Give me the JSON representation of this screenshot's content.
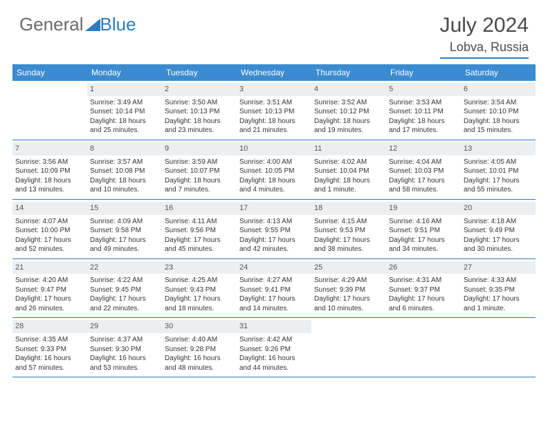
{
  "logo": {
    "text_gray": "General",
    "text_blue": "Blue"
  },
  "title": "July 2024",
  "location": "Lobva, Russia",
  "colors": {
    "header_bg": "#3a8bd0",
    "accent": "#2b7bc0",
    "daynum_bg": "#eceff1",
    "text": "#333333",
    "gray_text": "#6a6a6a",
    "background": "#ffffff"
  },
  "day_names": [
    "Sunday",
    "Monday",
    "Tuesday",
    "Wednesday",
    "Thursday",
    "Friday",
    "Saturday"
  ],
  "weeks": [
    [
      null,
      {
        "n": "1",
        "sunrise": "3:49 AM",
        "sunset": "10:14 PM",
        "daylight": "18 hours and 25 minutes."
      },
      {
        "n": "2",
        "sunrise": "3:50 AM",
        "sunset": "10:13 PM",
        "daylight": "18 hours and 23 minutes."
      },
      {
        "n": "3",
        "sunrise": "3:51 AM",
        "sunset": "10:13 PM",
        "daylight": "18 hours and 21 minutes."
      },
      {
        "n": "4",
        "sunrise": "3:52 AM",
        "sunset": "10:12 PM",
        "daylight": "18 hours and 19 minutes."
      },
      {
        "n": "5",
        "sunrise": "3:53 AM",
        "sunset": "10:11 PM",
        "daylight": "18 hours and 17 minutes."
      },
      {
        "n": "6",
        "sunrise": "3:54 AM",
        "sunset": "10:10 PM",
        "daylight": "18 hours and 15 minutes."
      }
    ],
    [
      {
        "n": "7",
        "sunrise": "3:56 AM",
        "sunset": "10:09 PM",
        "daylight": "18 hours and 13 minutes."
      },
      {
        "n": "8",
        "sunrise": "3:57 AM",
        "sunset": "10:08 PM",
        "daylight": "18 hours and 10 minutes."
      },
      {
        "n": "9",
        "sunrise": "3:59 AM",
        "sunset": "10:07 PM",
        "daylight": "18 hours and 7 minutes."
      },
      {
        "n": "10",
        "sunrise": "4:00 AM",
        "sunset": "10:05 PM",
        "daylight": "18 hours and 4 minutes."
      },
      {
        "n": "11",
        "sunrise": "4:02 AM",
        "sunset": "10:04 PM",
        "daylight": "18 hours and 1 minute."
      },
      {
        "n": "12",
        "sunrise": "4:04 AM",
        "sunset": "10:03 PM",
        "daylight": "17 hours and 58 minutes."
      },
      {
        "n": "13",
        "sunrise": "4:05 AM",
        "sunset": "10:01 PM",
        "daylight": "17 hours and 55 minutes."
      }
    ],
    [
      {
        "n": "14",
        "sunrise": "4:07 AM",
        "sunset": "10:00 PM",
        "daylight": "17 hours and 52 minutes."
      },
      {
        "n": "15",
        "sunrise": "4:09 AM",
        "sunset": "9:58 PM",
        "daylight": "17 hours and 49 minutes."
      },
      {
        "n": "16",
        "sunrise": "4:11 AM",
        "sunset": "9:56 PM",
        "daylight": "17 hours and 45 minutes."
      },
      {
        "n": "17",
        "sunrise": "4:13 AM",
        "sunset": "9:55 PM",
        "daylight": "17 hours and 42 minutes."
      },
      {
        "n": "18",
        "sunrise": "4:15 AM",
        "sunset": "9:53 PM",
        "daylight": "17 hours and 38 minutes."
      },
      {
        "n": "19",
        "sunrise": "4:16 AM",
        "sunset": "9:51 PM",
        "daylight": "17 hours and 34 minutes."
      },
      {
        "n": "20",
        "sunrise": "4:18 AM",
        "sunset": "9:49 PM",
        "daylight": "17 hours and 30 minutes."
      }
    ],
    [
      {
        "n": "21",
        "sunrise": "4:20 AM",
        "sunset": "9:47 PM",
        "daylight": "17 hours and 26 minutes."
      },
      {
        "n": "22",
        "sunrise": "4:22 AM",
        "sunset": "9:45 PM",
        "daylight": "17 hours and 22 minutes."
      },
      {
        "n": "23",
        "sunrise": "4:25 AM",
        "sunset": "9:43 PM",
        "daylight": "17 hours and 18 minutes."
      },
      {
        "n": "24",
        "sunrise": "4:27 AM",
        "sunset": "9:41 PM",
        "daylight": "17 hours and 14 minutes."
      },
      {
        "n": "25",
        "sunrise": "4:29 AM",
        "sunset": "9:39 PM",
        "daylight": "17 hours and 10 minutes."
      },
      {
        "n": "26",
        "sunrise": "4:31 AM",
        "sunset": "9:37 PM",
        "daylight": "17 hours and 6 minutes."
      },
      {
        "n": "27",
        "sunrise": "4:33 AM",
        "sunset": "9:35 PM",
        "daylight": "17 hours and 1 minute."
      }
    ],
    [
      {
        "n": "28",
        "sunrise": "4:35 AM",
        "sunset": "9:33 PM",
        "daylight": "16 hours and 57 minutes."
      },
      {
        "n": "29",
        "sunrise": "4:37 AM",
        "sunset": "9:30 PM",
        "daylight": "16 hours and 53 minutes."
      },
      {
        "n": "30",
        "sunrise": "4:40 AM",
        "sunset": "9:28 PM",
        "daylight": "16 hours and 48 minutes."
      },
      {
        "n": "31",
        "sunrise": "4:42 AM",
        "sunset": "9:26 PM",
        "daylight": "16 hours and 44 minutes."
      },
      null,
      null,
      null
    ]
  ],
  "labels": {
    "sunrise": "Sunrise: ",
    "sunset": "Sunset: ",
    "daylight": "Daylight: "
  }
}
